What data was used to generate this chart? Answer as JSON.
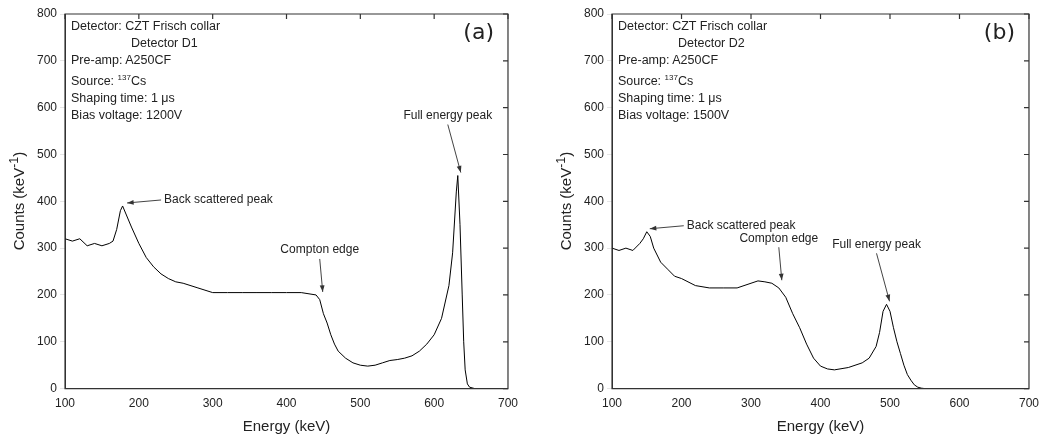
{
  "chart_data": [
    {
      "type": "line",
      "title": "(a)",
      "xlabel": "Energy (keV)",
      "ylabel": "Counts (keV$^{-1}$)",
      "annotations": [
        "Detector: CZT Frisch collar",
        "Detector D1",
        "Pre-amp: A250CF",
        "Source: $^{137}$Cs",
        "Shaping time: 1 μs",
        "Bias voltage: 1200V",
        {
          "text": "Back scattered peak",
          "x": 180,
          "y": 390
        },
        {
          "text": "Compton edge",
          "x": 445,
          "y": 200
        },
        {
          "text": "Full energy peak",
          "x": 632,
          "y": 455
        }
      ],
      "x": [
        100,
        110,
        120,
        130,
        140,
        150,
        160,
        165,
        170,
        175,
        178,
        182,
        190,
        200,
        210,
        220,
        230,
        240,
        250,
        260,
        280,
        300,
        320,
        340,
        360,
        380,
        400,
        420,
        440,
        445,
        450,
        455,
        460,
        465,
        470,
        480,
        490,
        500,
        510,
        520,
        530,
        540,
        550,
        560,
        570,
        580,
        590,
        600,
        610,
        620,
        625,
        630,
        632,
        635,
        638,
        640,
        642,
        645,
        648,
        655,
        700
      ],
      "series": [
        {
          "color": "#000000",
          "values": [
            320,
            315,
            320,
            305,
            310,
            305,
            310,
            315,
            340,
            380,
            390,
            375,
            345,
            310,
            280,
            260,
            245,
            235,
            228,
            225,
            215,
            205,
            205,
            205,
            205,
            205,
            205,
            205,
            200,
            190,
            160,
            140,
            115,
            95,
            80,
            65,
            55,
            50,
            48,
            50,
            55,
            60,
            62,
            65,
            70,
            80,
            95,
            115,
            150,
            220,
            290,
            420,
            455,
            350,
            200,
            100,
            40,
            10,
            3,
            0,
            0
          ]
        }
      ],
      "xlim": [
        100,
        700
      ],
      "ylim": [
        0,
        800
      ],
      "xticks": [
        100,
        200,
        300,
        400,
        500,
        600,
        700
      ],
      "yticks": [
        0,
        100,
        200,
        300,
        400,
        500,
        600,
        700,
        800
      ],
      "grid": false,
      "legend": false
    },
    {
      "type": "line",
      "title": "(b)",
      "xlabel": "Energy (keV)",
      "ylabel": "Counts (keV$^{-1}$)",
      "annotations": [
        "Detector: CZT Frisch collar",
        "Detector D2",
        "Pre-amp: A250CF",
        "Source: $^{137}$Cs",
        "Shaping time: 1 μs",
        "Bias voltage: 1500V",
        {
          "text": "Back scattered peak",
          "x": 150,
          "y": 335
        },
        {
          "text": "Compton edge",
          "x": 340,
          "y": 225
        },
        {
          "text": "Full energy peak",
          "x": 495,
          "y": 180
        }
      ],
      "x": [
        100,
        110,
        120,
        130,
        140,
        145,
        150,
        155,
        160,
        170,
        180,
        190,
        200,
        220,
        240,
        260,
        280,
        300,
        310,
        320,
        330,
        340,
        350,
        360,
        370,
        380,
        390,
        400,
        410,
        420,
        440,
        460,
        470,
        480,
        485,
        490,
        495,
        500,
        505,
        510,
        515,
        520,
        525,
        530,
        535,
        540,
        545,
        550,
        700
      ],
      "series": [
        {
          "color": "#000000",
          "values": [
            300,
            295,
            300,
            295,
            310,
            320,
            335,
            325,
            300,
            270,
            255,
            240,
            235,
            220,
            215,
            215,
            215,
            225,
            230,
            228,
            225,
            215,
            195,
            160,
            130,
            95,
            65,
            48,
            42,
            40,
            45,
            55,
            65,
            90,
            120,
            165,
            180,
            165,
            130,
            100,
            75,
            50,
            30,
            18,
            8,
            3,
            1,
            0,
            0
          ]
        }
      ],
      "xlim": [
        100,
        700
      ],
      "ylim": [
        0,
        800
      ],
      "xticks": [
        100,
        200,
        300,
        400,
        500,
        600,
        700
      ],
      "yticks": [
        0,
        100,
        200,
        300,
        400,
        500,
        600,
        700,
        800
      ],
      "grid": false,
      "legend": false
    }
  ]
}
